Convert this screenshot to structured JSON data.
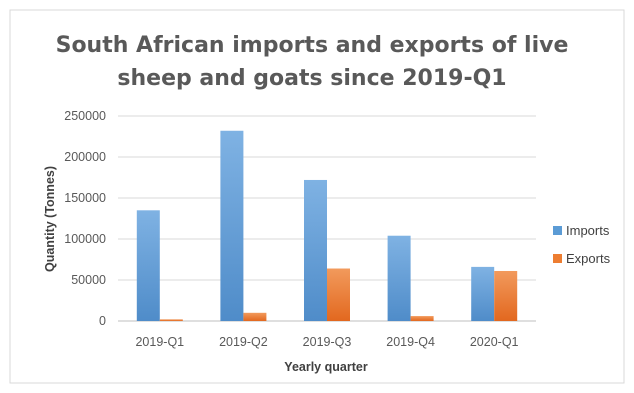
{
  "chart_data": {
    "type": "bar",
    "title": "South African imports and exports of live sheep and goats since 2019-Q1",
    "title_lines": [
      "South African imports and exports of live",
      "sheep and goats since 2019-Q1"
    ],
    "xlabel": "Yearly quarter",
    "ylabel": "Quantity (Tonnes)",
    "categories": [
      "2019-Q1",
      "2019-Q2",
      "2019-Q3",
      "2019-Q4",
      "2020-Q1"
    ],
    "series": [
      {
        "name": "Imports",
        "values": [
          135000,
          232000,
          172000,
          104000,
          66000
        ],
        "color": "#5B9BD5"
      },
      {
        "name": "Exports",
        "values": [
          2000,
          10000,
          64000,
          6000,
          61000
        ],
        "color": "#ED7D31"
      }
    ],
    "ylim": [
      0,
      250000
    ],
    "yticks": [
      0,
      50000,
      100000,
      150000,
      200000,
      250000
    ],
    "ytick_labels": [
      "0",
      "50000",
      "100000",
      "150000",
      "200000",
      "250000"
    ],
    "grid": true,
    "legend_position": "right"
  }
}
